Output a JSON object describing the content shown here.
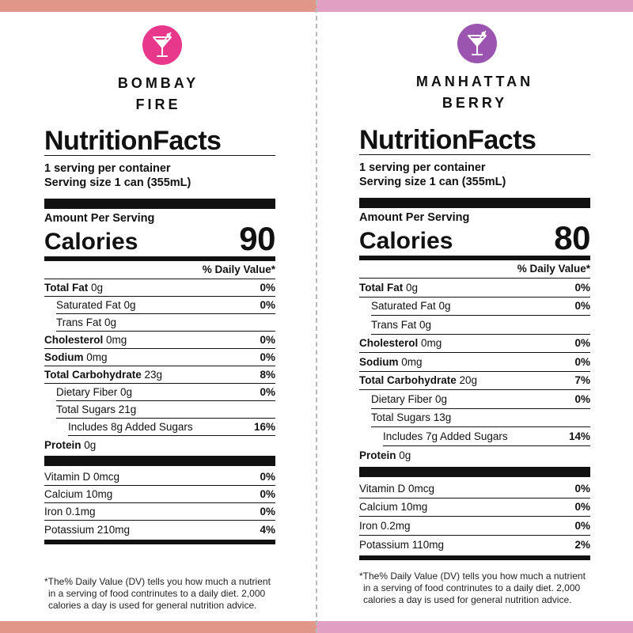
{
  "left": {
    "accent": "#e8388c",
    "bar_color": "#e0978a",
    "icon": "martini-glass-icon",
    "brand_line1": "BOMBAY",
    "brand_line2": "FIRE",
    "title": "NutritionFacts",
    "servings": "1 serving per container",
    "serving_size": "Serving size 1 can (355mL)",
    "amount_per_serving": "Amount Per Serving",
    "calories_label": "Calories",
    "calories": "90",
    "dv_header": "% Daily Value*",
    "nutrients": [
      {
        "name": "Total Fat",
        "amount": " 0g",
        "pct": "0%"
      },
      {
        "name": "",
        "amount": "Saturated Fat 0g",
        "pct": "0%"
      },
      {
        "name": "",
        "amount": "Trans Fat 0g",
        "pct": ""
      },
      {
        "name": "Cholesterol",
        "amount": " 0mg",
        "pct": "0%"
      },
      {
        "name": "Sodium",
        "amount": " 0mg",
        "pct": "0%"
      },
      {
        "name": "Total Carbohydrate",
        "amount": " 23g",
        "pct": "8%"
      },
      {
        "name": "",
        "amount": "Dietary Fiber 0g",
        "pct": "0%"
      },
      {
        "name": "",
        "amount": "Total Sugars 21g",
        "pct": ""
      },
      {
        "name": "",
        "amount": "Includes 8g Added Sugars",
        "pct": "16%"
      },
      {
        "name": "Protein",
        "amount": " 0g",
        "pct": ""
      }
    ],
    "vitamins": [
      {
        "label": "Vitamin D 0mcg",
        "pct": "0%"
      },
      {
        "label": "Calcium 10mg",
        "pct": "0%"
      },
      {
        "label": "Iron 0.1mg",
        "pct": "0%"
      },
      {
        "label": "Potassium 210mg",
        "pct": "4%"
      }
    ],
    "footnote_1": "*The% Daily Value (DV) tells you how much a nutrient",
    "footnote_2": "in a serving of food contrinutes to a daily diet. 2,000",
    "footnote_3": "calories a day is used for general nutrition advice."
  },
  "right": {
    "accent": "#9b54b0",
    "bar_color": "#e29fc4",
    "icon": "martini-glass-icon",
    "brand_line1": "MANHATTAN",
    "brand_line2": "BERRY",
    "title": "NutritionFacts",
    "servings": "1 serving per container",
    "serving_size": "Serving size 1 can (355mL)",
    "amount_per_serving": "Amount Per Serving",
    "calories_label": "Calories",
    "calories": "80",
    "dv_header": "% Daily Value*",
    "nutrients": [
      {
        "name": "Total Fat",
        "amount": " 0g",
        "pct": "0%"
      },
      {
        "name": "",
        "amount": "Saturated Fat 0g",
        "pct": "0%"
      },
      {
        "name": "",
        "amount": "Trans Fat 0g",
        "pct": ""
      },
      {
        "name": "Cholesterol",
        "amount": " 0mg",
        "pct": "0%"
      },
      {
        "name": "Sodium",
        "amount": " 0mg",
        "pct": "0%"
      },
      {
        "name": "Total Carbohydrate",
        "amount": " 20g",
        "pct": "7%"
      },
      {
        "name": "",
        "amount": "Dietary Fiber 0g",
        "pct": "0%"
      },
      {
        "name": "",
        "amount": "Total Sugars 13g",
        "pct": ""
      },
      {
        "name": "",
        "amount": "Includes 7g Added Sugars",
        "pct": "14%"
      },
      {
        "name": "Protein",
        "amount": " 0g",
        "pct": ""
      }
    ],
    "vitamins": [
      {
        "label": "Vitamin D 0mcg",
        "pct": "0%"
      },
      {
        "label": "Calcium 10mg",
        "pct": "0%"
      },
      {
        "label": "Iron 0.2mg",
        "pct": "0%"
      },
      {
        "label": "Potassium 110mg",
        "pct": "2%"
      }
    ],
    "footnote_1": "*The% Daily Value (DV) tells you how much a nutrient",
    "footnote_2": "in a serving of food contrinutes to a daily diet. 2,000",
    "footnote_3": "calories a day is used for general nutrition advice."
  }
}
